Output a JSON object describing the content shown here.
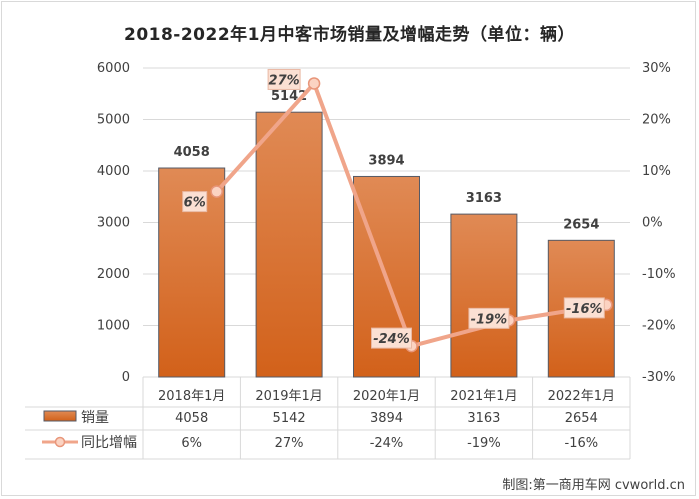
{
  "chart_data": {
    "type": "bar",
    "title": "2018-2022年1月中客市场销量及增幅走势（单位：辆）",
    "categories": [
      "2018年1月",
      "2019年1月",
      "2020年1月",
      "2021年1月",
      "2022年1月"
    ],
    "series": [
      {
        "name": "销量",
        "type": "bar",
        "axis": "left",
        "color": "#d4651c",
        "values": [
          4058,
          5142,
          3894,
          3163,
          2654
        ]
      },
      {
        "name": "同比增幅",
        "type": "line",
        "axis": "right",
        "color": "#f0a58a",
        "values": [
          6,
          27,
          -24,
          -19,
          -16
        ]
      }
    ],
    "y_left": {
      "ylim": [
        0,
        6000
      ],
      "ticks": [
        "0",
        "1000",
        "2000",
        "3000",
        "4000",
        "5000",
        "6000"
      ]
    },
    "y_right": {
      "ylim": [
        -30,
        30
      ],
      "ticks": [
        "-30%",
        "-20%",
        "-10%",
        "0%",
        "10%",
        "20%",
        "30%"
      ]
    },
    "bar_labels": [
      "4058",
      "5142",
      "3894",
      "3163",
      "2654"
    ],
    "line_labels": [
      "6%",
      "27%",
      "-24%",
      "-19%",
      "-16%"
    ],
    "data_table": {
      "rows": [
        {
          "legend": "销量",
          "cells": [
            "4058",
            "5142",
            "3894",
            "3163",
            "2654"
          ]
        },
        {
          "legend": "同比增幅",
          "cells": [
            "6%",
            "27%",
            "-24%",
            "-19%",
            "-16%"
          ]
        }
      ]
    },
    "grid": true
  },
  "credit": "制图:第一商用车网 cvworld.cn"
}
